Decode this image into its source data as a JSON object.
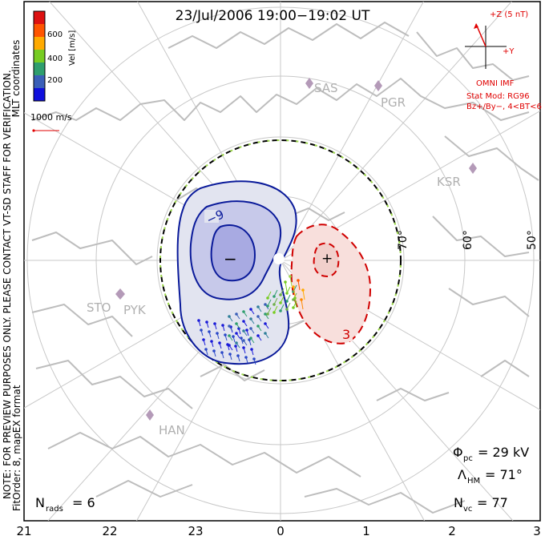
{
  "title": "23/Jul/2006 19:00−19:02 UT",
  "colorbar": {
    "unit_label": "Vel [m/s]",
    "tick_labels": [
      "600",
      "400",
      "200"
    ],
    "colors": [
      "#dd1111",
      "#ff5500",
      "#ffaa00",
      "#77cc22",
      "#2f9e6e",
      "#3a5fb8",
      "#1010dd"
    ]
  },
  "coords_label": "MLT coordinates",
  "vector_scale_label": "1000 m/s",
  "preview_note": "NOTE: FOR PREVIEW PURPOSES ONLY. PLEASE CONTACT VT-SD STAFF FOR VERIFICATION.",
  "fit_note": "FitOrder: 8, mapEX format",
  "imf": {
    "z_label": "+Z (5 nT)",
    "y_label": "+Y",
    "source_label": "OMNI IMF",
    "model_label": "Stat Mod: RG96",
    "model_params": "Bz+/By−, 4<BT<6"
  },
  "stations": [
    "SAS",
    "PGR",
    "KSR",
    "STO",
    "PYK",
    "HAN"
  ],
  "lat_labels": [
    "70°",
    "60°",
    "50°"
  ],
  "contours": {
    "neg_label": "−9",
    "pos_label": "3",
    "min_marker": "−",
    "max_marker": "+"
  },
  "stats": {
    "phi_pc_sym": "Φ",
    "phi_pc_sub": "pc",
    "phi_pc_value": "= 29 kV",
    "lambda_hm_sym": "Λ",
    "lambda_hm_sub": "HM",
    "lambda_hm_value": "= 71°",
    "n_vc_sym": "N",
    "n_vc_sub": "vc",
    "n_vc_value": "= 77",
    "n_rads_sym": "N",
    "n_rads_sub": "rads",
    "n_rads_value": "= 6"
  },
  "mlt_ticks": [
    "21",
    "22",
    "23",
    "0",
    "1",
    "2",
    "3"
  ]
}
